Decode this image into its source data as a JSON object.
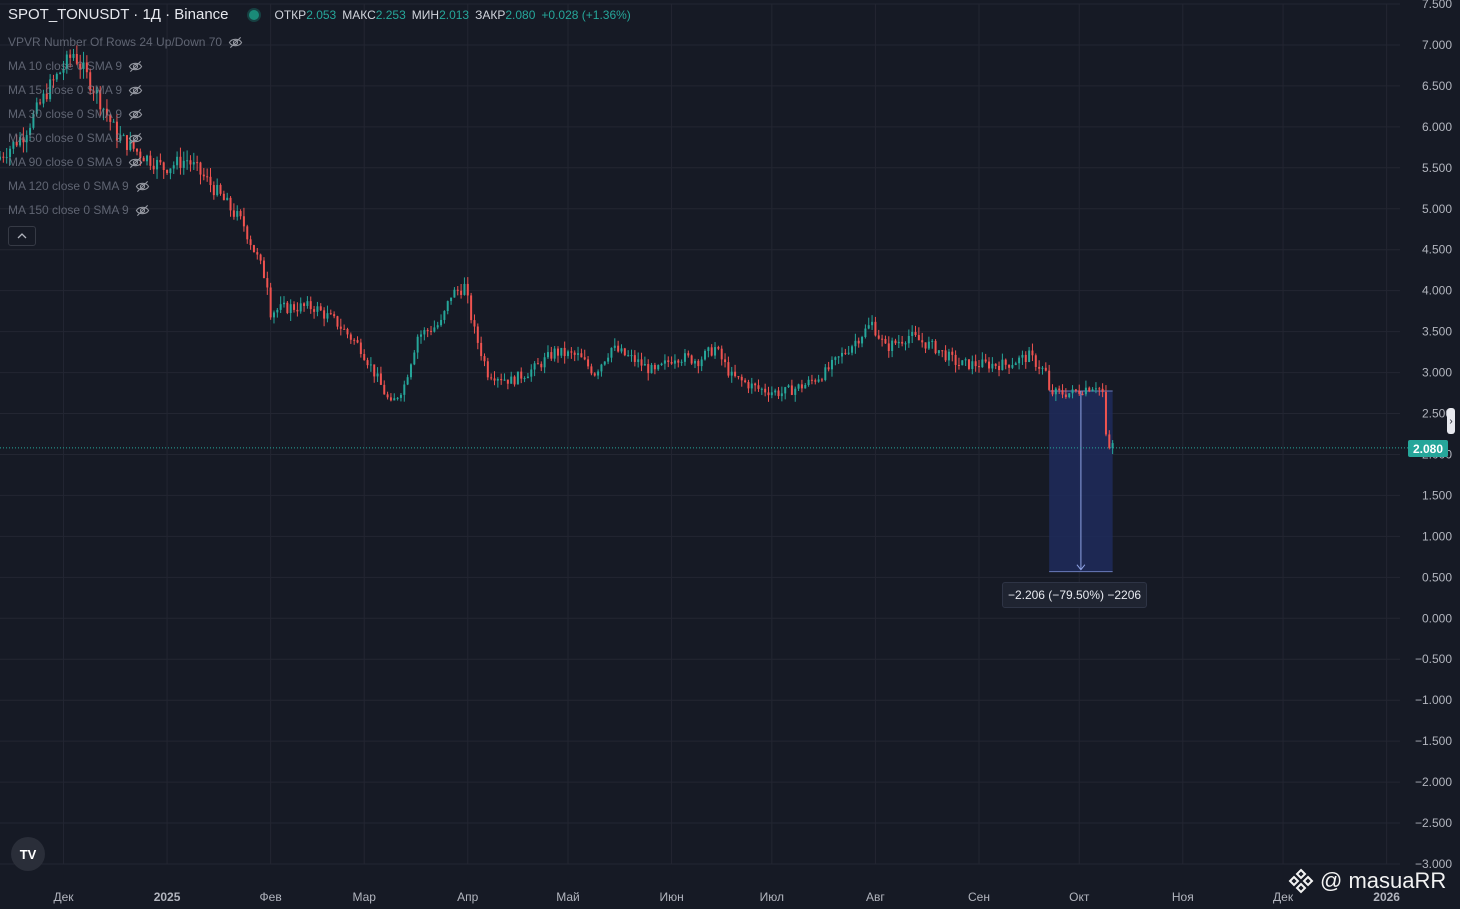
{
  "header": {
    "symbol": "SPOT_TONUSDT · 1Д · Binance",
    "ohlc": {
      "open_label": "ОТКР",
      "open": "2.053",
      "high_label": "МАКС",
      "high": "2.253",
      "low_label": "МИН",
      "low": "2.013",
      "close_label": "ЗАКР",
      "close": "2.080",
      "change": "+0.028 (+1.36%)"
    }
  },
  "indicators": [
    {
      "label": "VPVR Number Of Rows 24 Up/Down 70",
      "icon": "eye-off-icon"
    },
    {
      "label": "MA 10 close 0 SMA 9",
      "icon": "eye-off-icon"
    },
    {
      "label": "MA 15 close 0 SMA 9",
      "icon": "eye-off-icon"
    },
    {
      "label": "MA 30 close 0 SMA 9",
      "icon": "eye-off-icon"
    },
    {
      "label": "MA 50 close 0 SMA 9",
      "icon": "eye-off-icon"
    },
    {
      "label": "MA 90 close 0 SMA 9",
      "icon": "eye-off-icon"
    },
    {
      "label": "MA 120 close 0 SMA 9",
      "icon": "eye-off-icon"
    },
    {
      "label": "MA 150 close 0 SMA 9",
      "icon": "eye-off-icon"
    }
  ],
  "last_price_label": "2.080",
  "measure_label": "−2.206 (−79.50%) −2206",
  "watermark": "@ masuaRR",
  "colors": {
    "background": "#161a25",
    "up": "#26a69a",
    "down": "#ef5350",
    "grid": "#232632",
    "measure_fill": "#1e2c5c"
  },
  "chart_data": {
    "type": "candlestick",
    "title": "SPOT_TONUSDT · 1Д · Binance",
    "ylim": [
      -3.0,
      7.5
    ],
    "y_ticks": [
      "7.500",
      "7.000",
      "6.500",
      "6.000",
      "5.500",
      "5.000",
      "4.500",
      "4.000",
      "3.500",
      "3.000",
      "2.500",
      "2.000",
      "1.500",
      "1.000",
      "0.500",
      "0.000",
      "−0.500",
      "−1.000",
      "−1.500",
      "−2.000",
      "−2.500",
      "−3.000"
    ],
    "x_ticks": [
      "Дек",
      "2025",
      "Фев",
      "Мар",
      "Апр",
      "Май",
      "Июн",
      "Июл",
      "Авг",
      "Сен",
      "Окт",
      "Ноя",
      "Дек",
      "2026"
    ],
    "x_range": [
      "2024-11-12",
      "2026-01-05"
    ],
    "series_path": [
      [
        "2024-11-12",
        5.6
      ],
      [
        "2024-11-20",
        5.9
      ],
      [
        "2024-11-28",
        6.5
      ],
      [
        "2024-12-05",
        6.9
      ],
      [
        "2024-12-12",
        6.4
      ],
      [
        "2024-12-18",
        5.9
      ],
      [
        "2024-12-24",
        5.7
      ],
      [
        "2025-01-01",
        5.5
      ],
      [
        "2025-01-08",
        5.6
      ],
      [
        "2025-01-15",
        5.3
      ],
      [
        "2025-01-20",
        5.05
      ],
      [
        "2025-01-25",
        4.8
      ],
      [
        "2025-02-01",
        4.1
      ],
      [
        "2025-02-02",
        3.75
      ],
      [
        "2025-02-08",
        3.8
      ],
      [
        "2025-02-15",
        3.8
      ],
      [
        "2025-02-22",
        3.6
      ],
      [
        "2025-03-01",
        3.3
      ],
      [
        "2025-03-05",
        3.0
      ],
      [
        "2025-03-10",
        2.6
      ],
      [
        "2025-03-14",
        2.85
      ],
      [
        "2025-03-18",
        3.45
      ],
      [
        "2025-03-25",
        3.6
      ],
      [
        "2025-03-28",
        3.95
      ],
      [
        "2025-04-01",
        4.05
      ],
      [
        "2025-04-04",
        3.5
      ],
      [
        "2025-04-08",
        3.0
      ],
      [
        "2025-04-15",
        2.9
      ],
      [
        "2025-04-22",
        3.05
      ],
      [
        "2025-04-28",
        3.25
      ],
      [
        "2025-05-05",
        3.2
      ],
      [
        "2025-05-10",
        3.0
      ],
      [
        "2025-05-15",
        3.3
      ],
      [
        "2025-05-22",
        3.15
      ],
      [
        "2025-05-28",
        3.0
      ],
      [
        "2025-06-03",
        3.2
      ],
      [
        "2025-06-10",
        3.15
      ],
      [
        "2025-06-15",
        3.3
      ],
      [
        "2025-06-20",
        2.95
      ],
      [
        "2025-06-28",
        2.8
      ],
      [
        "2025-07-05",
        2.75
      ],
      [
        "2025-07-12",
        2.85
      ],
      [
        "2025-07-18",
        3.0
      ],
      [
        "2025-07-25",
        3.3
      ],
      [
        "2025-08-01",
        3.6
      ],
      [
        "2025-08-05",
        3.3
      ],
      [
        "2025-08-12",
        3.45
      ],
      [
        "2025-08-20",
        3.3
      ],
      [
        "2025-08-27",
        3.1
      ],
      [
        "2025-09-03",
        3.1
      ],
      [
        "2025-09-10",
        3.1
      ],
      [
        "2025-09-17",
        3.2
      ],
      [
        "2025-09-22",
        3.0
      ],
      [
        "2025-09-23",
        2.75
      ],
      [
        "2025-09-30",
        2.75
      ],
      [
        "2025-10-03",
        2.8
      ],
      [
        "2025-10-07",
        2.85
      ],
      [
        "2025-10-09",
        2.75
      ],
      [
        "2025-10-10",
        2.2
      ],
      [
        "2025-10-11",
        2.08
      ]
    ],
    "last_close": 2.08,
    "measurement": {
      "from_date": "2025-09-22",
      "to_date": "2025-10-11",
      "from_value": 2.775,
      "to_value": 0.569,
      "change": -2.206,
      "percent": -79.5
    }
  }
}
